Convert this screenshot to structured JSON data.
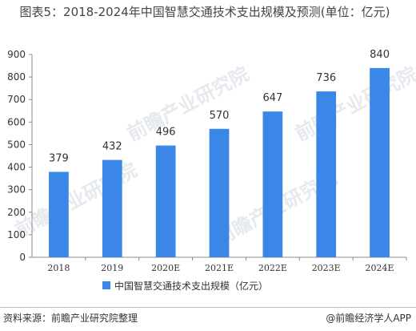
{
  "page": {
    "title": "图表5：2018-2024年中国智慧交通技术支出规模及预测(单位：亿元)",
    "source": "资料来源：前瞻产业研究院整理",
    "brand": "@前瞻经济学人APP",
    "watermark": "前瞻产业研究院"
  },
  "chart_data": {
    "type": "bar",
    "title": "图表5：2018-2024年中国智慧交通技术支出规模及预测(单位：亿元)",
    "categories": [
      "2018",
      "2019",
      "2020E",
      "2021E",
      "2022E",
      "2023E",
      "2024E"
    ],
    "series": [
      {
        "name": "中国智慧交通技术支出规模（亿元）",
        "values": [
          379,
          432,
          496,
          570,
          647,
          736,
          840
        ],
        "color": "#3b87e8"
      }
    ],
    "ylim": [
      0,
      900
    ],
    "yticks": [
      0,
      100,
      200,
      300,
      400,
      500,
      600,
      700,
      800,
      900
    ],
    "xlabel": "",
    "ylabel": "",
    "grid": false,
    "legend": "bottom-center"
  }
}
